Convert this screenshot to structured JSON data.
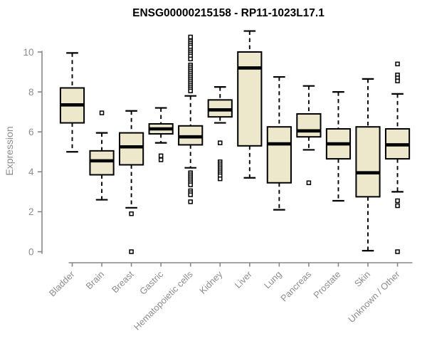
{
  "chart_data": {
    "type": "boxplot",
    "title": "ENSG00000215158 - RP11-1023L17.1",
    "xlabel": "",
    "ylabel": "Expression",
    "ylim": [
      0,
      11.1
    ],
    "yticks": [
      0,
      2,
      4,
      6,
      8,
      10
    ],
    "grid": false,
    "legend": null,
    "categories": [
      "Bladder",
      "Brain",
      "Breast",
      "Gastric",
      "Hematopoietic cells",
      "Kidney",
      "Liver",
      "Lung",
      "Pancreas",
      "Prostate",
      "Skin",
      "Unknown / Other"
    ],
    "boxes": [
      {
        "category": "Bladder",
        "whisker_low": 5.0,
        "q1": 6.45,
        "median": 7.35,
        "q3": 8.2,
        "whisker_high": 9.95,
        "outliers": []
      },
      {
        "category": "Brain",
        "whisker_low": 2.6,
        "q1": 3.85,
        "median": 4.55,
        "q3": 5.05,
        "whisker_high": 5.95,
        "outliers": [
          6.95
        ]
      },
      {
        "category": "Breast",
        "whisker_low": 2.2,
        "q1": 4.35,
        "median": 5.25,
        "q3": 5.95,
        "whisker_high": 7.05,
        "outliers": [
          1.9,
          0.0
        ]
      },
      {
        "category": "Gastric",
        "whisker_low": 5.45,
        "q1": 5.9,
        "median": 6.15,
        "q3": 6.4,
        "whisker_high": 7.2,
        "outliers": [
          4.8,
          4.6
        ]
      },
      {
        "category": "Hematopoietic cells",
        "whisker_low": 4.2,
        "q1": 5.35,
        "median": 5.75,
        "q3": 6.3,
        "whisker_high": 7.8,
        "outliers": [
          10.75,
          10.55,
          10.45,
          10.35,
          10.25,
          10.1,
          10.0,
          9.9,
          9.8,
          9.65,
          9.35,
          9.25,
          9.15,
          9.05,
          8.95,
          8.85,
          8.75,
          8.65,
          8.55,
          8.45,
          8.35,
          8.25,
          8.15,
          8.05,
          3.95,
          3.85,
          3.75,
          3.65,
          3.55,
          3.45,
          3.35,
          3.05,
          2.95,
          2.85,
          2.5
        ]
      },
      {
        "category": "Kidney",
        "whisker_low": 6.45,
        "q1": 6.75,
        "median": 7.1,
        "q3": 7.6,
        "whisker_high": 8.25,
        "outliers": [
          5.45,
          4.5,
          4.4,
          4.3,
          4.2,
          4.1,
          4.0,
          3.9,
          3.8,
          3.65
        ]
      },
      {
        "category": "Liver",
        "whisker_low": 3.7,
        "q1": 5.3,
        "median": 9.2,
        "q3": 10.0,
        "whisker_high": 11.05,
        "outliers": []
      },
      {
        "category": "Lung",
        "whisker_low": 2.1,
        "q1": 3.45,
        "median": 5.4,
        "q3": 6.25,
        "whisker_high": 8.75,
        "outliers": []
      },
      {
        "category": "Pancreas",
        "whisker_low": 5.1,
        "q1": 5.75,
        "median": 6.05,
        "q3": 6.9,
        "whisker_high": 8.3,
        "outliers": [
          3.45
        ]
      },
      {
        "category": "Prostate",
        "whisker_low": 2.55,
        "q1": 4.65,
        "median": 5.4,
        "q3": 6.15,
        "whisker_high": 8.0,
        "outliers": []
      },
      {
        "category": "Skin",
        "whisker_low": 0.05,
        "q1": 2.75,
        "median": 3.95,
        "q3": 6.25,
        "whisker_high": 8.65,
        "outliers": []
      },
      {
        "category": "Unknown / Other",
        "whisker_low": 3.0,
        "q1": 4.65,
        "median": 5.35,
        "q3": 6.15,
        "whisker_high": 7.9,
        "outliers": [
          9.4,
          8.85,
          8.7,
          8.55,
          2.55,
          2.3,
          0.0
        ]
      }
    ],
    "colors": {
      "box_fill": "#EDE7CB",
      "box_border": "#000000",
      "median": "#000000",
      "whisker": "#000000",
      "outlier_fill": "#ffffff",
      "outlier_border": "#000000",
      "axis": "#878787",
      "tick_label": "#8c8c8c",
      "title": "#000000",
      "background": "#ffffff"
    }
  }
}
